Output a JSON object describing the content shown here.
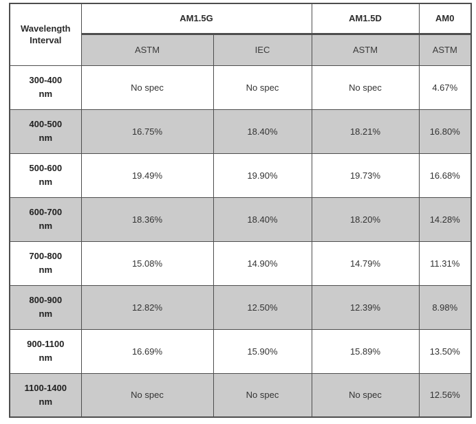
{
  "table": {
    "header": {
      "wavelength_label": "Wavelength Interval",
      "groups": [
        {
          "label": "AM1.5G"
        },
        {
          "label": "AM1.5D"
        },
        {
          "label": "AM0"
        }
      ],
      "subheaders": [
        "ASTM",
        "IEC",
        "ASTM",
        "ASTM"
      ]
    },
    "rows": [
      {
        "range": "300-400",
        "unit": "nm",
        "values": [
          "No spec",
          "No spec",
          "No spec",
          "4.67%"
        ]
      },
      {
        "range": "400-500",
        "unit": "nm",
        "values": [
          "16.75%",
          "18.40%",
          "18.21%",
          "16.80%"
        ]
      },
      {
        "range": "500-600",
        "unit": "nm",
        "values": [
          "19.49%",
          "19.90%",
          "19.73%",
          "16.68%"
        ]
      },
      {
        "range": "600-700",
        "unit": "nm",
        "values": [
          "18.36%",
          "18.40%",
          "18.20%",
          "14.28%"
        ]
      },
      {
        "range": "700-800",
        "unit": "nm",
        "values": [
          "15.08%",
          "14.90%",
          "14.79%",
          "11.31%"
        ]
      },
      {
        "range": "800-900",
        "unit": "nm",
        "values": [
          "12.82%",
          "12.50%",
          "12.39%",
          "8.98%"
        ]
      },
      {
        "range": "900-1100",
        "unit": "nm",
        "values": [
          "16.69%",
          "15.90%",
          "15.89%",
          "13.50%"
        ]
      },
      {
        "range": "1100-1400",
        "unit": "nm",
        "values": [
          "No spec",
          "No spec",
          "No spec",
          "12.56%"
        ]
      }
    ],
    "colors": {
      "zebra_gray": "#cbcbcb",
      "border": "#4d4d4d",
      "text": "#333333"
    }
  }
}
